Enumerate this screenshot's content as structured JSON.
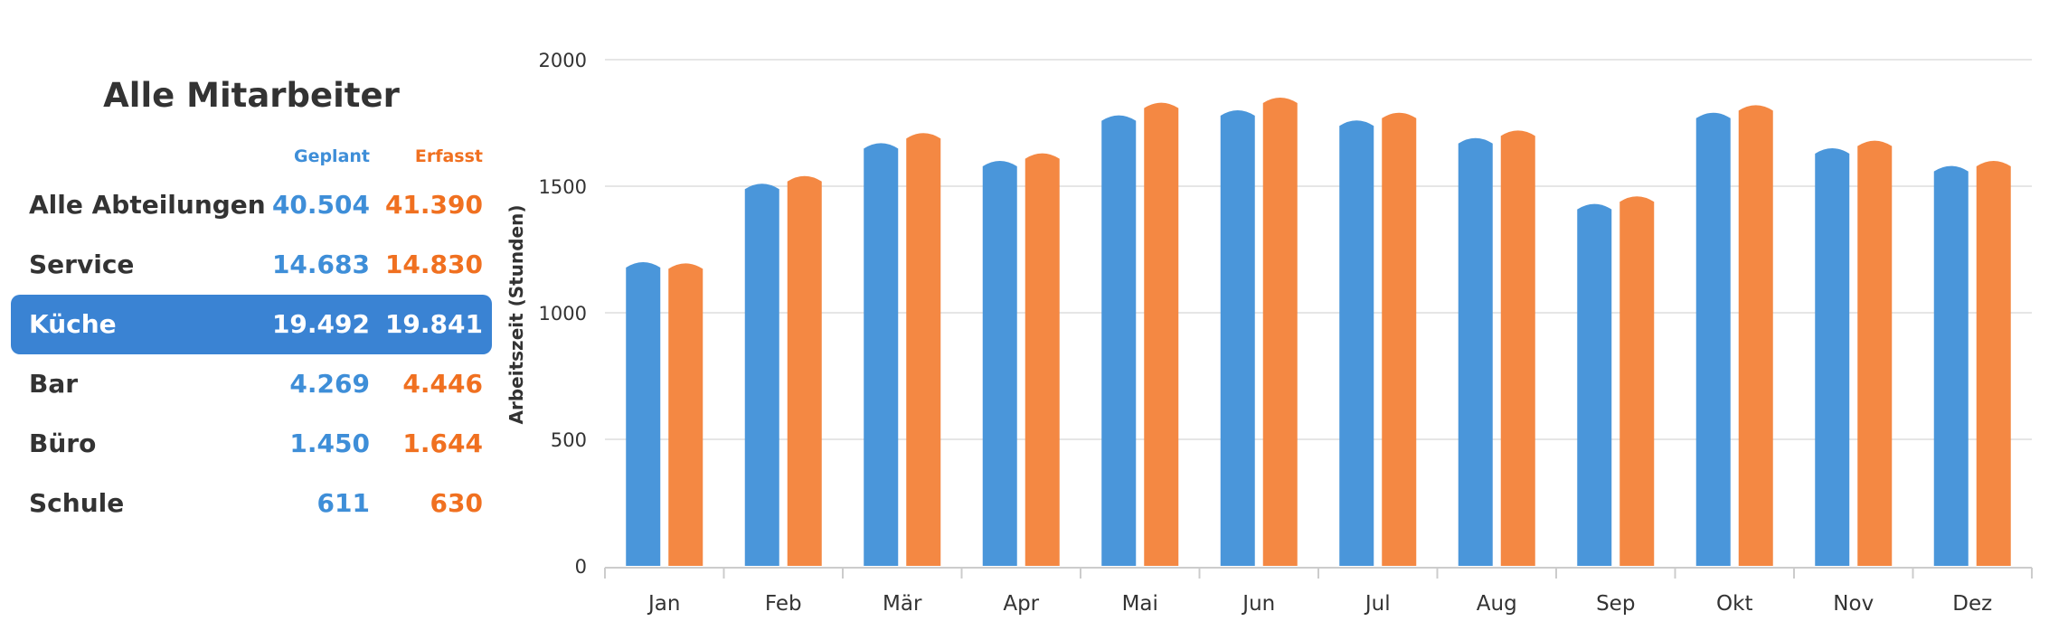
{
  "panel": {
    "title": "Alle Mitarbeiter",
    "col_planned": "Geplant",
    "col_recorded": "Erfasst",
    "rows": [
      {
        "name": "Alle Abteilungen",
        "planned": "40.504",
        "recorded": "41.390",
        "selected": false
      },
      {
        "name": "Service",
        "planned": "14.683",
        "recorded": "14.830",
        "selected": false
      },
      {
        "name": "Küche",
        "planned": "19.492",
        "recorded": "19.841",
        "selected": true
      },
      {
        "name": "Bar",
        "planned": "4.269",
        "recorded": "4.446",
        "selected": false
      },
      {
        "name": "Büro",
        "planned": "1.450",
        "recorded": "1.644",
        "selected": false
      },
      {
        "name": "Schule",
        "planned": "611",
        "recorded": "630",
        "selected": false
      }
    ]
  },
  "colors": {
    "planned": "#4a96da",
    "recorded": "#f48843",
    "selected_row": "#3a83d3",
    "grid": "#dddddd",
    "axis": "#cccccc"
  },
  "chart_data": {
    "type": "bar",
    "categories": [
      "Jan",
      "Feb",
      "Mär",
      "Apr",
      "Mai",
      "Jun",
      "Jul",
      "Aug",
      "Sep",
      "Okt",
      "Nov",
      "Dez"
    ],
    "series": [
      {
        "values": [
          1200,
          1510,
          1670,
          1600,
          1780,
          1800,
          1760,
          1690,
          1430,
          1790,
          1650,
          1580
        ]
      },
      {
        "values": [
          1195,
          1540,
          1710,
          1630,
          1830,
          1850,
          1790,
          1720,
          1460,
          1820,
          1680,
          1600
        ]
      }
    ],
    "ylabel": "Arbeitszeit (Stunden)",
    "yticks": [
      0,
      500,
      1000,
      1500,
      2000
    ],
    "ylim": [
      0,
      2000
    ],
    "grid": true,
    "legend": "none"
  }
}
